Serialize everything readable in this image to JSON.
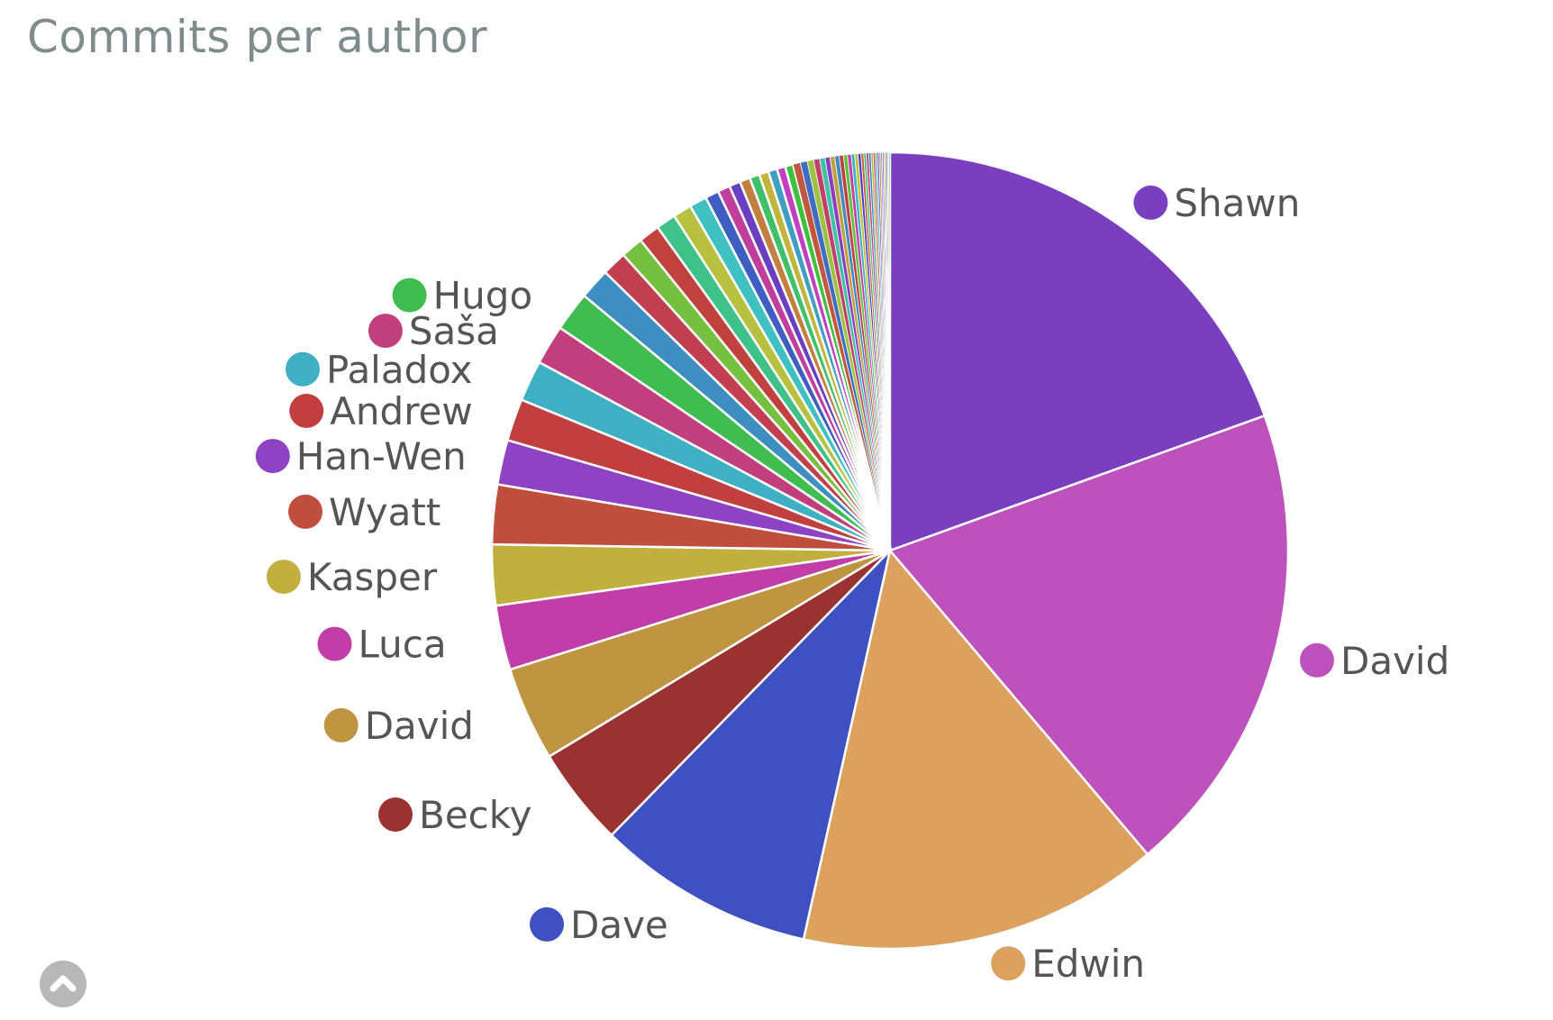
{
  "title": "Commits per author",
  "scroll_top": {
    "icon": "chevron-up-icon"
  },
  "chart_data": {
    "type": "pie",
    "title": "Commits per author",
    "legend_placement": "labels beside slices",
    "slices": [
      {
        "label": "Shawn",
        "value": 19.4,
        "color": "#7a3fbf",
        "labeled": true
      },
      {
        "label": "David",
        "value": 19.2,
        "color": "#be52bc",
        "labeled": true
      },
      {
        "label": "Edwin",
        "value": 14.6,
        "color": "#dca05f",
        "labeled": true
      },
      {
        "label": "Dave",
        "value": 8.8,
        "color": "#3f50c2",
        "labeled": true
      },
      {
        "label": "Becky",
        "value": 4.0,
        "color": "#9b3232",
        "labeled": true
      },
      {
        "label": "David",
        "value": 3.8,
        "color": "#bf9541",
        "labeled": true
      },
      {
        "label": "Luca",
        "value": 2.6,
        "color": "#c13ea9",
        "labeled": true
      },
      {
        "label": "Kasper",
        "value": 2.45,
        "color": "#c1b040",
        "labeled": true
      },
      {
        "label": "Wyatt",
        "value": 2.4,
        "color": "#c04e3e",
        "labeled": true
      },
      {
        "label": "Han-Wen",
        "value": 1.8,
        "color": "#8e42c4",
        "labeled": true
      },
      {
        "label": "Andrew",
        "value": 1.7,
        "color": "#c13f3f",
        "labeled": true
      },
      {
        "label": "Paladox",
        "value": 1.65,
        "color": "#3fb0c3",
        "labeled": true
      },
      {
        "label": "Saša",
        "value": 1.6,
        "color": "#c13f7c",
        "labeled": true
      },
      {
        "label": "Hugo",
        "value": 1.6,
        "color": "#3fbd51",
        "labeled": true
      },
      {
        "label": "",
        "value": 1.25,
        "color": "#3f8ec2",
        "labeled": false
      },
      {
        "label": "",
        "value": 1.0,
        "color": "#c13f50",
        "labeled": false
      },
      {
        "label": "",
        "value": 0.9,
        "color": "#75c13f",
        "labeled": false
      },
      {
        "label": "",
        "value": 0.85,
        "color": "#c1413f",
        "labeled": false
      },
      {
        "label": "",
        "value": 0.8,
        "color": "#3fc18a",
        "labeled": false
      },
      {
        "label": "",
        "value": 0.75,
        "color": "#b8c13f",
        "labeled": false
      },
      {
        "label": "",
        "value": 0.7,
        "color": "#3fc1c1",
        "labeled": false
      },
      {
        "label": "",
        "value": 0.55,
        "color": "#3f5ec1",
        "labeled": false
      },
      {
        "label": "",
        "value": 0.5,
        "color": "#c13f9c",
        "labeled": false
      },
      {
        "label": "",
        "value": 0.45,
        "color": "#6a3fc1",
        "labeled": false
      },
      {
        "label": "",
        "value": 0.42,
        "color": "#c1803f",
        "labeled": false
      },
      {
        "label": "",
        "value": 0.4,
        "color": "#3fc16a",
        "labeled": false
      },
      {
        "label": "",
        "value": 0.38,
        "color": "#c1b53f",
        "labeled": false
      },
      {
        "label": "",
        "value": 0.36,
        "color": "#3f9ec1",
        "labeled": false
      },
      {
        "label": "",
        "value": 0.34,
        "color": "#c13fc1",
        "labeled": false
      },
      {
        "label": "",
        "value": 0.32,
        "color": "#3fc13f",
        "labeled": false
      },
      {
        "label": "",
        "value": 0.3,
        "color": "#c1573f",
        "labeled": false
      },
      {
        "label": "",
        "value": 0.28,
        "color": "#3f6ec1",
        "labeled": false
      },
      {
        "label": "",
        "value": 0.26,
        "color": "#9ec13f",
        "labeled": false
      },
      {
        "label": "",
        "value": 0.24,
        "color": "#c13f6a",
        "labeled": false
      },
      {
        "label": "",
        "value": 0.22,
        "color": "#3fc1a8",
        "labeled": false
      },
      {
        "label": "",
        "value": 0.2,
        "color": "#8a3fc1",
        "labeled": false
      },
      {
        "label": "",
        "value": 0.19,
        "color": "#c1a03f",
        "labeled": false
      },
      {
        "label": "",
        "value": 0.18,
        "color": "#3f8ac1",
        "labeled": false
      },
      {
        "label": "",
        "value": 0.17,
        "color": "#c13f3f",
        "labeled": false
      },
      {
        "label": "",
        "value": 0.16,
        "color": "#5ec13f",
        "labeled": false
      },
      {
        "label": "",
        "value": 0.15,
        "color": "#c13fa8",
        "labeled": false
      },
      {
        "label": "",
        "value": 0.14,
        "color": "#3fb5c1",
        "labeled": false
      },
      {
        "label": "",
        "value": 0.13,
        "color": "#c1c13f",
        "labeled": false
      },
      {
        "label": "",
        "value": 0.12,
        "color": "#503fc1",
        "labeled": false
      },
      {
        "label": "",
        "value": 0.11,
        "color": "#c1683f",
        "labeled": false
      },
      {
        "label": "",
        "value": 0.1,
        "color": "#3fc17a",
        "labeled": false
      },
      {
        "label": "",
        "value": 0.1,
        "color": "#c13f8a",
        "labeled": false
      },
      {
        "label": "",
        "value": 0.09,
        "color": "#3f7ac1",
        "labeled": false
      },
      {
        "label": "",
        "value": 0.09,
        "color": "#a8c13f",
        "labeled": false
      },
      {
        "label": "",
        "value": 0.08,
        "color": "#c13f55",
        "labeled": false
      },
      {
        "label": "",
        "value": 0.08,
        "color": "#3fc1c1",
        "labeled": false
      },
      {
        "label": "",
        "value": 0.07,
        "color": "#7a3fc1",
        "labeled": false
      },
      {
        "label": "",
        "value": 0.07,
        "color": "#c1903f",
        "labeled": false
      },
      {
        "label": "",
        "value": 0.06,
        "color": "#3fa0c1",
        "labeled": false
      },
      {
        "label": "",
        "value": 0.06,
        "color": "#c13fc1",
        "labeled": false
      },
      {
        "label": "",
        "value": 0.05,
        "color": "#4fc13f",
        "labeled": false
      },
      {
        "label": "",
        "value": 0.05,
        "color": "#c1453f",
        "labeled": false
      },
      {
        "label": "",
        "value": 0.05,
        "color": "#3f60c1",
        "labeled": false
      },
      {
        "label": "",
        "value": 0.05,
        "color": "#c1b03f",
        "labeled": false
      },
      {
        "label": "",
        "value": 0.05,
        "color": "#3fc19e",
        "labeled": false
      }
    ]
  }
}
